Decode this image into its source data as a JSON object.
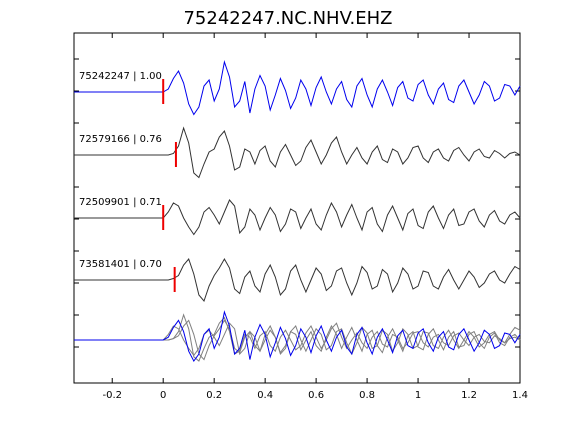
{
  "chart_data": {
    "type": "line",
    "title": "75242247.NC.NHV.EHZ",
    "xlabel": "",
    "ylabel": "",
    "xlim": [
      -0.35,
      1.4
    ],
    "grid": false,
    "legend": "none",
    "x_ticks": [
      {
        "value": -0.2,
        "label": "-0.2"
      },
      {
        "value": 0,
        "label": "0"
      },
      {
        "value": 0.2,
        "label": "0.2"
      },
      {
        "value": 0.4,
        "label": "0.4"
      },
      {
        "value": 0.6,
        "label": "0.6"
      },
      {
        "value": 0.8,
        "label": "0.8"
      },
      {
        "value": 1.0,
        "label": "1"
      },
      {
        "value": 1.2,
        "label": "1.2"
      },
      {
        "value": 1.4,
        "label": "1.4"
      }
    ],
    "colors": {
      "master": "#0000ee",
      "other": "#333333",
      "stack": "#808080",
      "pick": "#ee0000"
    },
    "series": [
      {
        "name": "75242247 | 1.00",
        "label": "75242247 | 1.00",
        "pick_time": 0.0,
        "color": "#0000ee",
        "x": [
          -0.35,
          0.0,
          0.02,
          0.04,
          0.06,
          0.08,
          0.1,
          0.12,
          0.14,
          0.16,
          0.18,
          0.2,
          0.22,
          0.24,
          0.26,
          0.28,
          0.3,
          0.32,
          0.34,
          0.36,
          0.38,
          0.4,
          0.42,
          0.44,
          0.46,
          0.48,
          0.5,
          0.52,
          0.54,
          0.56,
          0.58,
          0.6,
          0.62,
          0.64,
          0.66,
          0.68,
          0.7,
          0.72,
          0.74,
          0.76,
          0.78,
          0.8,
          0.82,
          0.84,
          0.86,
          0.88,
          0.9,
          0.92,
          0.94,
          0.96,
          0.98,
          1.0,
          1.02,
          1.04,
          1.06,
          1.08,
          1.1,
          1.12,
          1.14,
          1.16,
          1.18,
          1.2,
          1.22,
          1.24,
          1.26,
          1.28,
          1.3,
          1.32,
          1.34,
          1.36,
          1.38,
          1.4
        ],
        "y": [
          0.0,
          0.0,
          0.1,
          0.45,
          0.7,
          0.3,
          -0.4,
          -0.75,
          -0.5,
          0.2,
          0.4,
          -0.3,
          0.1,
          1.0,
          0.5,
          -0.5,
          -0.3,
          0.35,
          -0.7,
          0.1,
          0.55,
          0.2,
          -0.6,
          -0.1,
          0.45,
          0.05,
          -0.55,
          -0.2,
          0.4,
          0.1,
          -0.45,
          0.15,
          0.5,
          0.0,
          -0.4,
          0.1,
          0.35,
          -0.25,
          -0.5,
          0.2,
          0.45,
          -0.1,
          -0.5,
          0.1,
          0.4,
          0.0,
          -0.45,
          0.15,
          0.35,
          -0.2,
          -0.3,
          0.25,
          0.4,
          -0.1,
          -0.4,
          0.1,
          0.3,
          -0.25,
          -0.35,
          0.2,
          0.4,
          0.0,
          -0.4,
          -0.1,
          0.35,
          0.2,
          -0.3,
          -0.2,
          0.25,
          0.2,
          -0.1,
          0.2
        ]
      },
      {
        "name": "72579166 | 0.76",
        "label": "72579166 | 0.76",
        "pick_time": 0.05,
        "color": "#333333",
        "x": [
          -0.35,
          0.0,
          0.02,
          0.04,
          0.06,
          0.08,
          0.1,
          0.12,
          0.14,
          0.16,
          0.18,
          0.2,
          0.22,
          0.24,
          0.26,
          0.28,
          0.3,
          0.32,
          0.34,
          0.36,
          0.38,
          0.4,
          0.42,
          0.44,
          0.46,
          0.48,
          0.5,
          0.52,
          0.54,
          0.56,
          0.58,
          0.6,
          0.62,
          0.64,
          0.66,
          0.68,
          0.7,
          0.72,
          0.74,
          0.76,
          0.78,
          0.8,
          0.82,
          0.84,
          0.86,
          0.88,
          0.9,
          0.92,
          0.94,
          0.96,
          0.98,
          1.0,
          1.02,
          1.04,
          1.06,
          1.08,
          1.1,
          1.12,
          1.14,
          1.16,
          1.18,
          1.2,
          1.22,
          1.24,
          1.26,
          1.28,
          1.3,
          1.32,
          1.34,
          1.36,
          1.38,
          1.4
        ],
        "y": [
          0.0,
          0.0,
          0.0,
          0.05,
          0.3,
          0.9,
          0.4,
          -0.6,
          -0.75,
          -0.3,
          0.1,
          0.2,
          0.6,
          0.8,
          0.3,
          -0.5,
          -0.4,
          0.2,
          0.1,
          -0.3,
          0.15,
          0.3,
          -0.2,
          -0.4,
          0.1,
          0.35,
          0.0,
          -0.35,
          -0.2,
          0.25,
          0.5,
          0.1,
          -0.3,
          0.0,
          0.4,
          0.6,
          0.1,
          -0.3,
          0.0,
          0.25,
          -0.1,
          -0.3,
          0.1,
          0.3,
          -0.15,
          -0.25,
          0.2,
          0.1,
          -0.3,
          -0.1,
          0.25,
          0.3,
          -0.1,
          -0.25,
          0.1,
          0.2,
          -0.1,
          -0.2,
          0.15,
          0.25,
          0.0,
          -0.2,
          0.1,
          0.2,
          -0.05,
          -0.1,
          0.15,
          0.05,
          -0.1,
          0.05,
          0.1,
          0.0
        ]
      },
      {
        "name": "72509901 | 0.71",
        "label": "72509901 | 0.71",
        "pick_time": 0.0,
        "color": "#333333",
        "x": [
          -0.35,
          0.0,
          0.02,
          0.04,
          0.06,
          0.08,
          0.1,
          0.12,
          0.14,
          0.16,
          0.18,
          0.2,
          0.22,
          0.24,
          0.26,
          0.28,
          0.3,
          0.32,
          0.34,
          0.36,
          0.38,
          0.4,
          0.42,
          0.44,
          0.46,
          0.48,
          0.5,
          0.52,
          0.54,
          0.56,
          0.58,
          0.6,
          0.62,
          0.64,
          0.66,
          0.68,
          0.7,
          0.72,
          0.74,
          0.76,
          0.78,
          0.8,
          0.82,
          0.84,
          0.86,
          0.88,
          0.9,
          0.92,
          0.94,
          0.96,
          0.98,
          1.0,
          1.02,
          1.04,
          1.06,
          1.08,
          1.1,
          1.12,
          1.14,
          1.16,
          1.18,
          1.2,
          1.22,
          1.24,
          1.26,
          1.28,
          1.3,
          1.32,
          1.34,
          1.36,
          1.38,
          1.4
        ],
        "y": [
          0.0,
          0.0,
          0.2,
          0.5,
          0.4,
          0.0,
          -0.3,
          -0.55,
          -0.3,
          0.2,
          0.35,
          0.1,
          -0.2,
          0.2,
          0.6,
          0.4,
          -0.5,
          -0.3,
          0.3,
          0.1,
          -0.4,
          0.0,
          0.35,
          0.1,
          -0.45,
          -0.2,
          0.3,
          0.2,
          -0.35,
          0.0,
          0.3,
          -0.2,
          -0.4,
          0.1,
          0.5,
          0.2,
          -0.3,
          0.1,
          0.45,
          0.0,
          -0.4,
          0.2,
          0.35,
          -0.2,
          -0.45,
          0.1,
          0.4,
          0.0,
          -0.4,
          0.15,
          0.3,
          -0.25,
          -0.35,
          0.2,
          0.4,
          0.0,
          -0.35,
          0.1,
          0.3,
          -0.25,
          -0.2,
          0.2,
          0.3,
          -0.1,
          -0.3,
          0.1,
          0.25,
          -0.1,
          -0.2,
          0.1,
          0.2,
          0.0
        ]
      },
      {
        "name": "73581401 | 0.70",
        "label": "73581401 | 0.70",
        "pick_time": 0.045,
        "color": "#333333",
        "x": [
          -0.35,
          0.0,
          0.02,
          0.04,
          0.06,
          0.08,
          0.1,
          0.12,
          0.14,
          0.16,
          0.18,
          0.2,
          0.22,
          0.24,
          0.26,
          0.28,
          0.3,
          0.32,
          0.34,
          0.36,
          0.38,
          0.4,
          0.42,
          0.44,
          0.46,
          0.48,
          0.5,
          0.52,
          0.54,
          0.56,
          0.58,
          0.6,
          0.62,
          0.64,
          0.66,
          0.68,
          0.7,
          0.72,
          0.74,
          0.76,
          0.78,
          0.8,
          0.82,
          0.84,
          0.86,
          0.88,
          0.9,
          0.92,
          0.94,
          0.96,
          0.98,
          1.0,
          1.02,
          1.04,
          1.06,
          1.08,
          1.1,
          1.12,
          1.14,
          1.16,
          1.18,
          1.2,
          1.22,
          1.24,
          1.26,
          1.28,
          1.3,
          1.32,
          1.34,
          1.36,
          1.38,
          1.4
        ],
        "y": [
          0.0,
          0.0,
          0.0,
          0.05,
          0.15,
          0.5,
          0.7,
          0.2,
          -0.5,
          -0.7,
          -0.2,
          0.15,
          0.4,
          0.7,
          0.4,
          -0.3,
          -0.45,
          0.1,
          0.3,
          -0.2,
          -0.4,
          0.2,
          0.5,
          0.1,
          -0.5,
          -0.3,
          0.3,
          0.5,
          0.0,
          -0.4,
          0.0,
          0.4,
          0.2,
          -0.35,
          -0.2,
          0.3,
          0.4,
          -0.1,
          -0.5,
          -0.1,
          0.45,
          0.25,
          -0.3,
          -0.2,
          0.35,
          0.2,
          -0.4,
          -0.1,
          0.4,
          0.2,
          -0.3,
          -0.2,
          0.3,
          0.25,
          -0.2,
          -0.3,
          0.1,
          0.35,
          0.0,
          -0.3,
          0.0,
          0.3,
          0.1,
          -0.25,
          -0.1,
          0.2,
          0.3,
          0.0,
          -0.1,
          0.2,
          0.45,
          0.35
        ]
      }
    ]
  }
}
